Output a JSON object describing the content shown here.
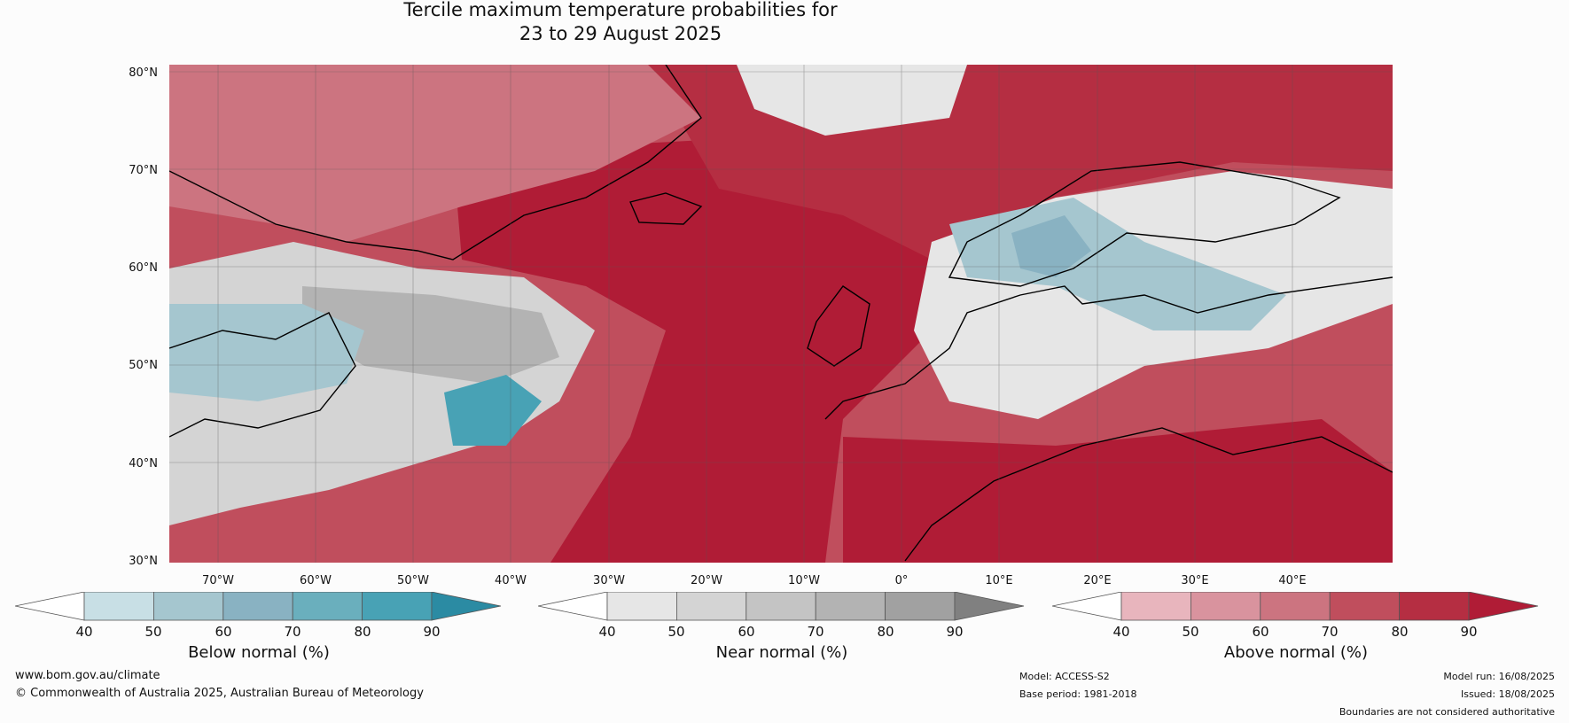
{
  "title_line1": "Tercile maximum temperature probabilities for",
  "title_line2": "23 to 29 August 2025",
  "lat_labels": [
    "80°N",
    "70°N",
    "60°N",
    "50°N",
    "40°N",
    "30°N"
  ],
  "lon_labels": [
    "70°W",
    "60°W",
    "50°W",
    "40°W",
    "30°W",
    "20°W",
    "10°W",
    "0°",
    "10°E",
    "20°E",
    "30°E",
    "40°E"
  ],
  "colorbars": [
    {
      "label": "Below normal (%)",
      "ticks": [
        "40",
        "50",
        "60",
        "70",
        "80",
        "90"
      ],
      "colors": [
        "#ffffff",
        "#c8dfe5",
        "#a5c6cf",
        "#89b2c2",
        "#6aafbd",
        "#48a2b5",
        "#2b8ba3"
      ]
    },
    {
      "label": "Near normal (%)",
      "ticks": [
        "40",
        "50",
        "60",
        "70",
        "80",
        "90"
      ],
      "colors": [
        "#ffffff",
        "#e6e6e6",
        "#d4d4d4",
        "#c4c4c4",
        "#b3b3b3",
        "#a1a1a1",
        "#808080"
      ]
    },
    {
      "label": "Above normal (%)",
      "ticks": [
        "40",
        "50",
        "60",
        "70",
        "80",
        "90"
      ],
      "colors": [
        "#ffffff",
        "#e8b5bd",
        "#d9939e",
        "#cc7480",
        "#c04e5d",
        "#b52e42",
        "#b01c36"
      ]
    }
  ],
  "footer": {
    "website": "www.bom.gov.au/climate",
    "copyright": "© Commonwealth of Australia 2025, Australian Bureau of Meteorology",
    "model": "Model: ACCESS-S2",
    "base_period": "Base period: 1981-2018",
    "model_run": "Model run: 16/08/2025",
    "issued": "Issued: 18/08/2025",
    "disclaimer": "Boundaries are not considered authoritative"
  }
}
